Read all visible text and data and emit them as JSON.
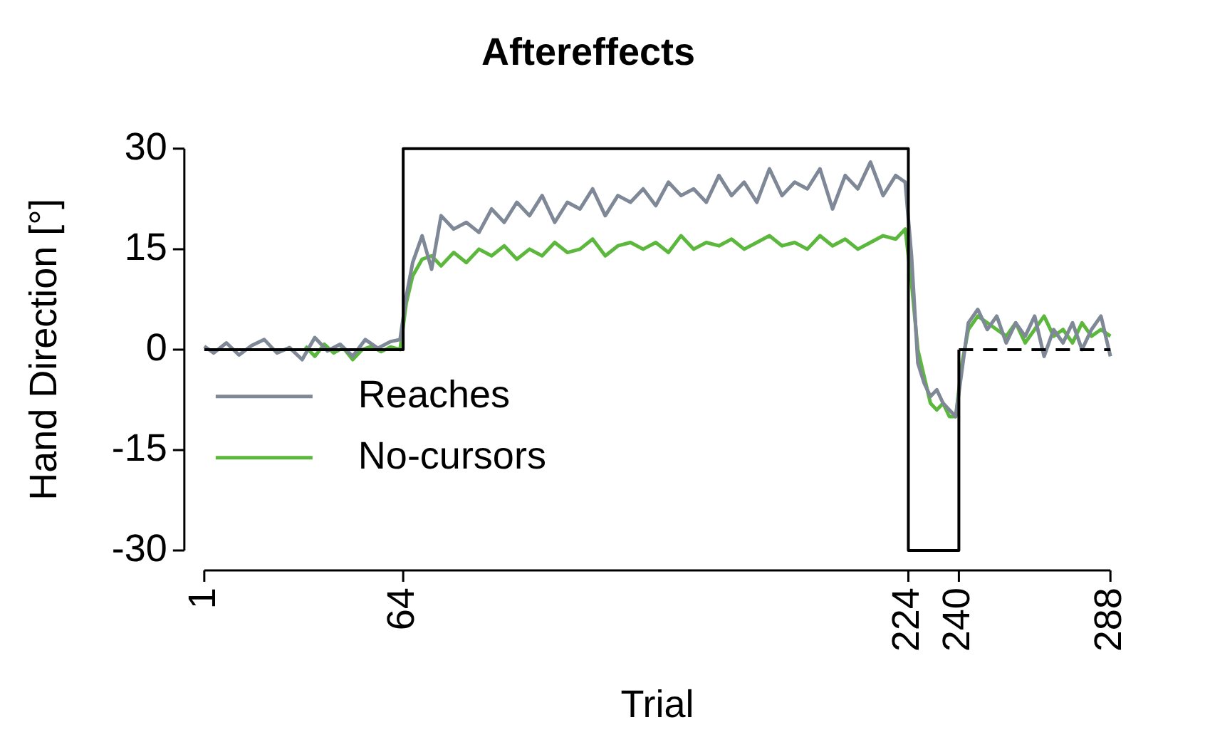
{
  "chart_data": {
    "type": "line",
    "title": "Aftereffects",
    "xlabel": "Trial",
    "ylabel": "Hand Direction [°]",
    "xlim": [
      1,
      288
    ],
    "xticks": [
      1,
      64,
      224,
      240,
      288
    ],
    "ylim": [
      -30,
      30
    ],
    "yticks": [
      -30,
      -15,
      0,
      15,
      30
    ],
    "grid": false,
    "legend": "left",
    "marker": "none",
    "series": [
      {
        "color": "#000000",
        "line_style": "solid",
        "x": [
          1,
          64,
          64,
          224,
          224,
          240,
          240
        ],
        "values": [
          0,
          0,
          30,
          30,
          -30,
          -30,
          0
        ]
      },
      {
        "color": "#000000",
        "line_style": "dashed",
        "x": [
          240,
          288
        ],
        "values": [
          0,
          0
        ]
      },
      {
        "name": "Reaches",
        "color": "#7f8896",
        "line_style": "solid",
        "x": [
          1,
          4,
          8,
          12,
          16,
          20,
          24,
          28,
          32,
          36,
          40,
          44,
          48,
          52,
          56,
          60,
          63,
          65,
          67,
          70,
          73,
          76,
          80,
          84,
          88,
          92,
          96,
          100,
          104,
          108,
          112,
          116,
          120,
          124,
          128,
          132,
          136,
          140,
          144,
          148,
          152,
          156,
          160,
          164,
          168,
          172,
          176,
          180,
          184,
          188,
          192,
          196,
          200,
          204,
          208,
          212,
          216,
          220,
          223,
          225,
          227,
          229,
          231,
          233,
          235,
          237,
          239,
          241,
          243,
          246,
          249,
          252,
          255,
          258,
          261,
          264,
          267,
          270,
          273,
          276,
          279,
          282,
          285,
          288
        ],
        "values": [
          0.5,
          -0.5,
          1,
          -0.8,
          0.6,
          1.5,
          -0.5,
          0.3,
          -1.5,
          1.8,
          -0.2,
          0.8,
          -1,
          1.5,
          0.2,
          1.2,
          1.5,
          8,
          13,
          17,
          12,
          20,
          18,
          19,
          17.5,
          21,
          19,
          22,
          20,
          23,
          19,
          22,
          21,
          24,
          20,
          23,
          22,
          24,
          21.5,
          25,
          23,
          24,
          22,
          26,
          23,
          25,
          22,
          27,
          23,
          25,
          24,
          27,
          21,
          26,
          24,
          28,
          23,
          26,
          25,
          14,
          -2,
          -5,
          -7,
          -6,
          -8,
          -9,
          -10,
          -3,
          4,
          6,
          3,
          5,
          1,
          4,
          2,
          5,
          -1,
          3,
          1,
          4,
          0,
          3,
          5,
          -1
        ]
      },
      {
        "name": "No-cursors",
        "color": "#5cb83c",
        "line_style": "solid",
        "x": [
          33,
          36,
          39,
          42,
          45,
          48,
          51,
          54,
          57,
          60,
          63,
          65,
          67,
          70,
          73,
          76,
          80,
          84,
          88,
          92,
          96,
          100,
          104,
          108,
          112,
          116,
          120,
          124,
          128,
          132,
          136,
          140,
          144,
          148,
          152,
          156,
          160,
          164,
          168,
          172,
          176,
          180,
          184,
          188,
          192,
          196,
          200,
          204,
          208,
          212,
          216,
          220,
          223,
          225,
          227,
          229,
          231,
          233,
          235,
          237,
          239,
          241,
          243,
          246,
          249,
          252,
          255,
          258,
          261,
          264,
          267,
          270,
          273,
          276,
          279,
          282,
          285,
          288
        ],
        "values": [
          0.5,
          -1,
          0.8,
          -0.5,
          0.3,
          -1.5,
          0,
          0.5,
          -0.3,
          0.4,
          0,
          7,
          11,
          13.5,
          14,
          12.5,
          14.5,
          13,
          15,
          14,
          15.5,
          13.5,
          15,
          14,
          16,
          14.5,
          15,
          16.5,
          14,
          15.5,
          16,
          15,
          16,
          14.5,
          17,
          15,
          16,
          15.5,
          16.5,
          15,
          16,
          17,
          15.5,
          16,
          15,
          17,
          15.5,
          16.5,
          15,
          16,
          17,
          16.5,
          18,
          10,
          0,
          -4,
          -8,
          -9,
          -8,
          -10,
          -10,
          -2,
          3,
          5,
          4,
          3,
          2,
          4,
          1,
          3,
          5,
          2,
          3,
          1,
          4,
          2,
          3,
          2
        ]
      }
    ]
  }
}
